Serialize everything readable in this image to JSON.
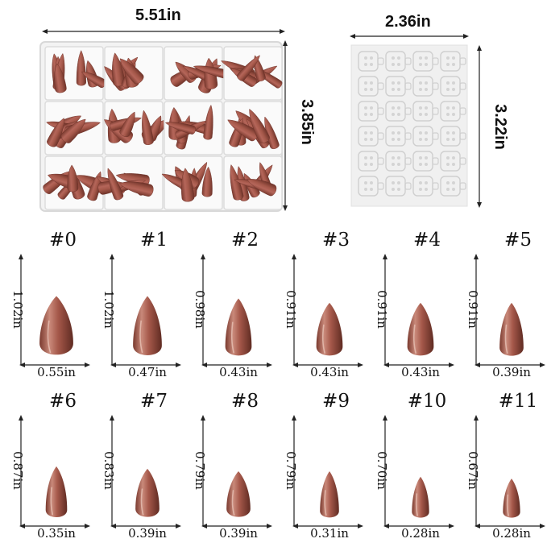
{
  "box": {
    "width_label": "5.51in",
    "height_label": "3.85in"
  },
  "sheet": {
    "width_label": "2.36in",
    "height_label": "3.22in"
  },
  "colors": {
    "nail": "#a5584a",
    "nail_dark": "#7a3a2f",
    "nail_light": "#c9897a",
    "line": "#222222",
    "tray": "#f3f3f3"
  },
  "sizes": [
    {
      "label": "#0",
      "height": "1.02in",
      "width": "0.55in",
      "h": 1.02,
      "w": 0.55
    },
    {
      "label": "#1",
      "height": "1.02in",
      "width": "0.47in",
      "h": 1.02,
      "w": 0.47
    },
    {
      "label": "#2",
      "height": "0.98in",
      "width": "0.43in",
      "h": 0.98,
      "w": 0.43
    },
    {
      "label": "#3",
      "height": "0.91in",
      "width": "0.43in",
      "h": 0.91,
      "w": 0.43
    },
    {
      "label": "#4",
      "height": "0.91in",
      "width": "0.43in",
      "h": 0.91,
      "w": 0.43
    },
    {
      "label": "#5",
      "height": "0.91in",
      "width": "0.39in",
      "h": 0.91,
      "w": 0.39
    },
    {
      "label": "#6",
      "height": "0.87in",
      "width": "0.35in",
      "h": 0.87,
      "w": 0.35
    },
    {
      "label": "#7",
      "height": "0.83in",
      "width": "0.39in",
      "h": 0.83,
      "w": 0.39
    },
    {
      "label": "#8",
      "height": "0.79in",
      "width": "0.39in",
      "h": 0.79,
      "w": 0.39
    },
    {
      "label": "#9",
      "height": "0.79in",
      "width": "0.31in",
      "h": 0.79,
      "w": 0.31
    },
    {
      "label": "#10",
      "height": "0.70in",
      "width": "0.28in",
      "h": 0.7,
      "w": 0.28
    },
    {
      "label": "#11",
      "height": "0.67in",
      "width": "0.28in",
      "h": 0.67,
      "w": 0.28
    }
  ]
}
